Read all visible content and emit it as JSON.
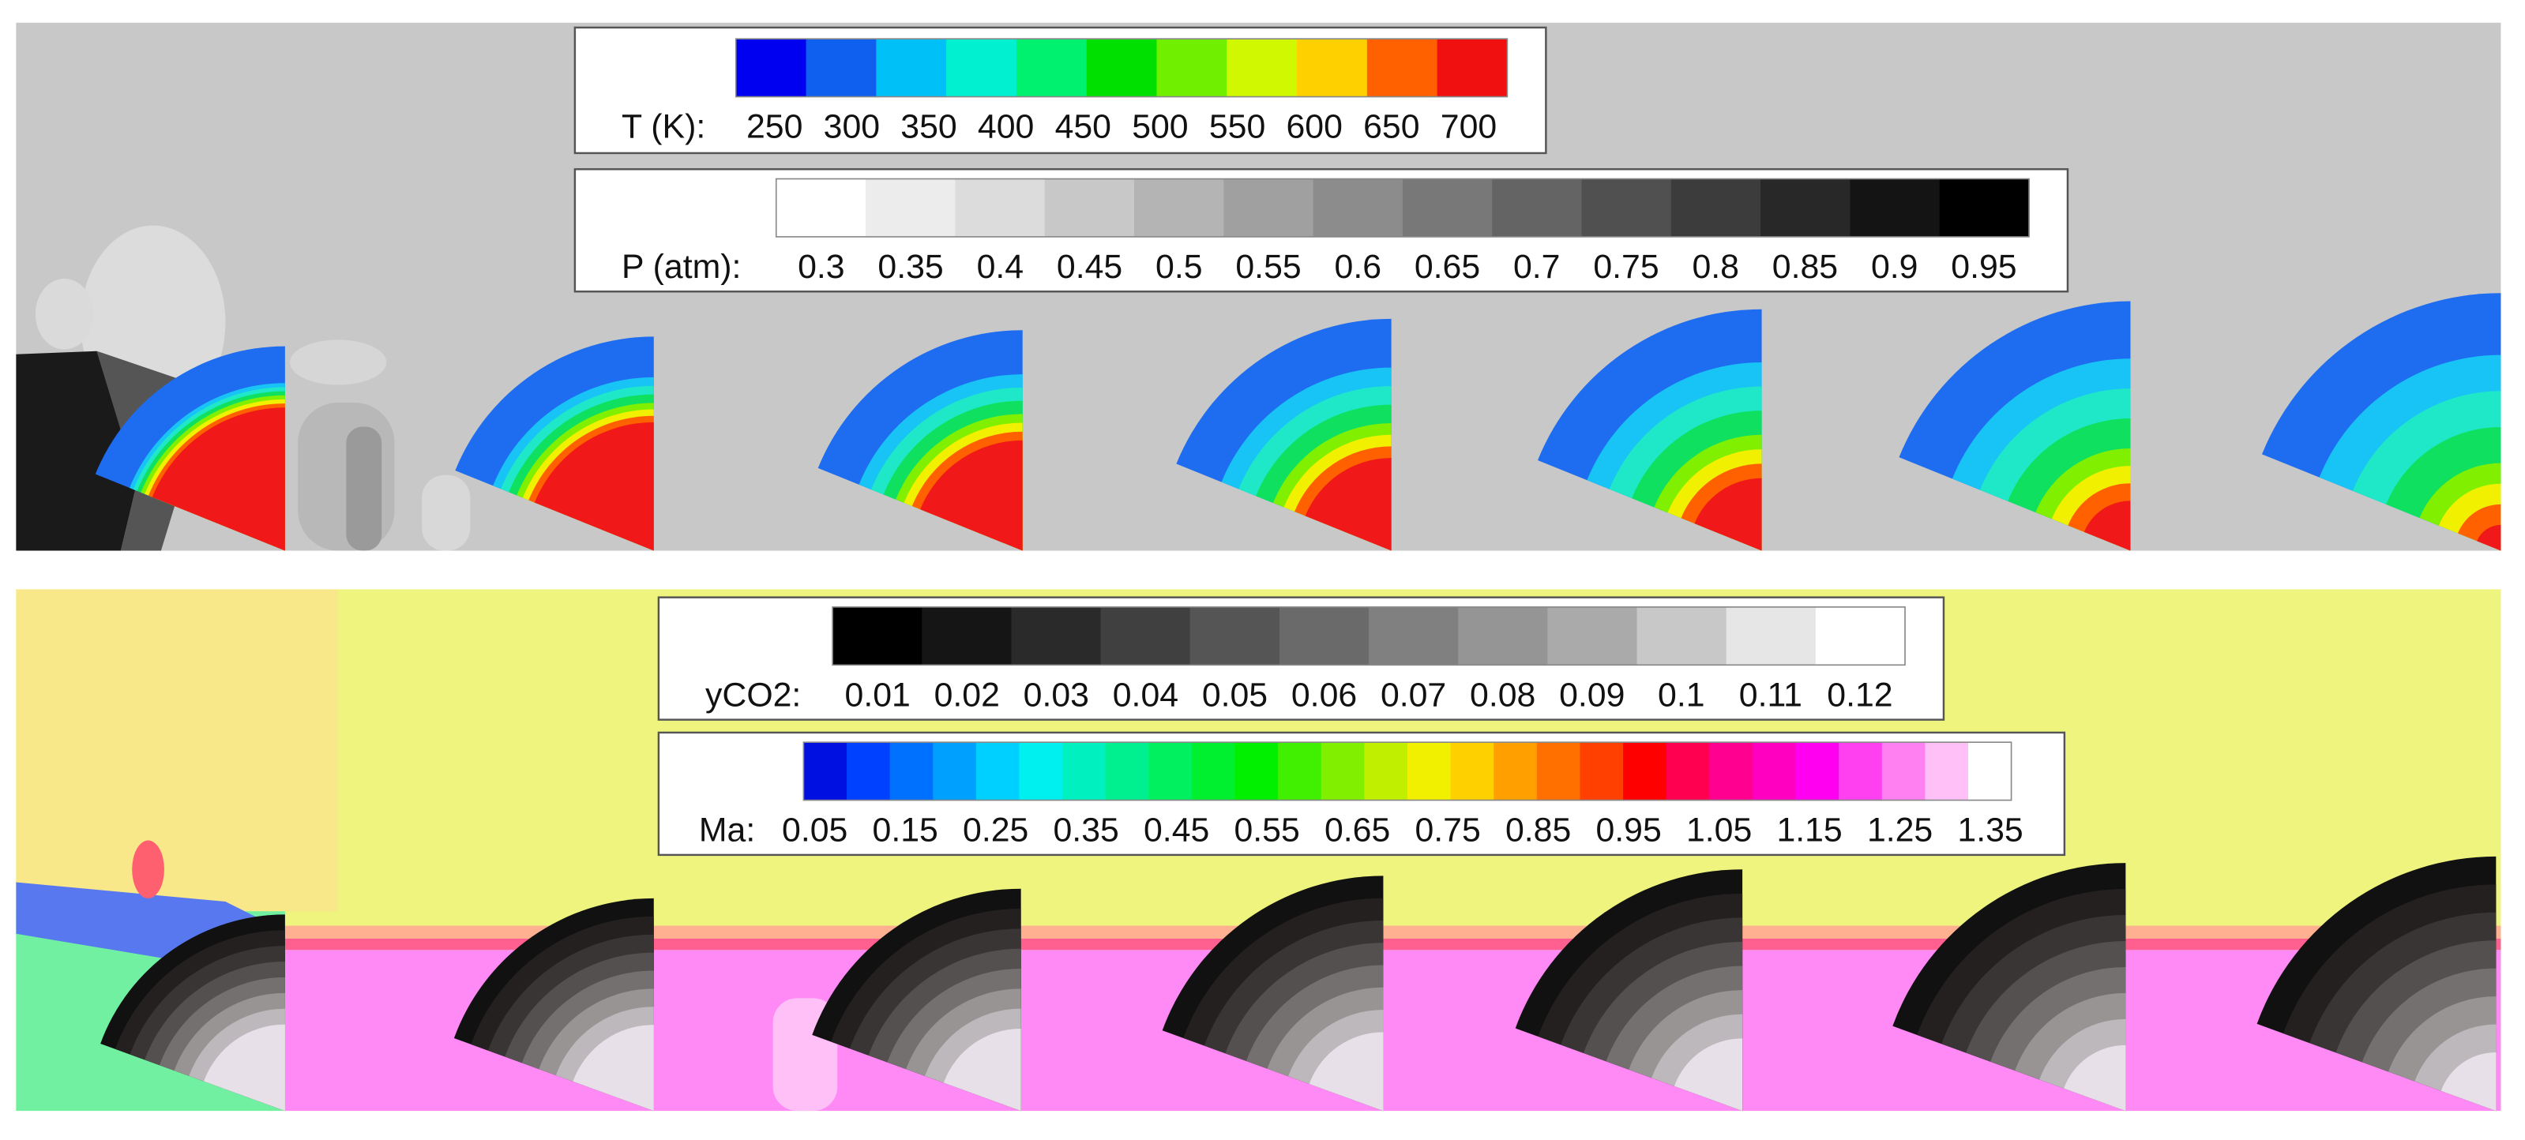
{
  "legends": [
    {
      "label": "T (K):",
      "ticks": [
        250,
        300,
        350,
        400,
        450,
        500,
        550,
        600,
        650,
        700
      ],
      "colors": [
        "#0000f0",
        "#1060f0",
        "#00c0f8",
        "#00f0d0",
        "#00f070",
        "#00e000",
        "#70f000",
        "#d0f800",
        "#ffd000",
        "#ff6000",
        "#f01010"
      ]
    },
    {
      "label": "P (atm):",
      "ticks": [
        0.3,
        0.35,
        0.4,
        0.45,
        0.5,
        0.55,
        0.6,
        0.65,
        0.7,
        0.75,
        0.8,
        0.85,
        0.9,
        0.95
      ],
      "colors": [
        "#ffffff",
        "#ececec",
        "#dcdcdc",
        "#c8c8c8",
        "#b4b4b4",
        "#a0a0a0",
        "#8c8c8c",
        "#787878",
        "#646464",
        "#505050",
        "#3c3c3c",
        "#282828",
        "#141414",
        "#000000"
      ]
    },
    {
      "label": "yCO2:",
      "ticks": [
        0.01,
        0.02,
        0.03,
        0.04,
        0.05,
        0.06,
        0.07,
        0.08,
        0.09,
        0.1,
        0.11,
        0.12
      ],
      "colors": [
        "#000000",
        "#151515",
        "#2a2a2a",
        "#404040",
        "#555555",
        "#6a6a6a",
        "#808080",
        "#959595",
        "#aaaaaa",
        "#c8c8c8",
        "#e6e6e6",
        "#ffffff"
      ]
    },
    {
      "label": "Ma:",
      "ticks": [
        0.05,
        0.15,
        0.25,
        0.35,
        0.45,
        0.55,
        0.65,
        0.75,
        0.85,
        0.95,
        1.05,
        1.15,
        1.25,
        1.35
      ],
      "colors": [
        "#0010e0",
        "#0040ff",
        "#0070ff",
        "#00a0ff",
        "#00d0ff",
        "#00f0f0",
        "#00f0c0",
        "#00f090",
        "#00f060",
        "#00f030",
        "#00f000",
        "#40f000",
        "#80f000",
        "#c0f000",
        "#f0f000",
        "#ffd000",
        "#ffa000",
        "#ff7000",
        "#ff4000",
        "#ff0000",
        "#ff0050",
        "#ff0090",
        "#ff00c0",
        "#ff00f0",
        "#ff40f0",
        "#ff80f0",
        "#ffc0f8",
        "#ffffff"
      ]
    }
  ]
}
